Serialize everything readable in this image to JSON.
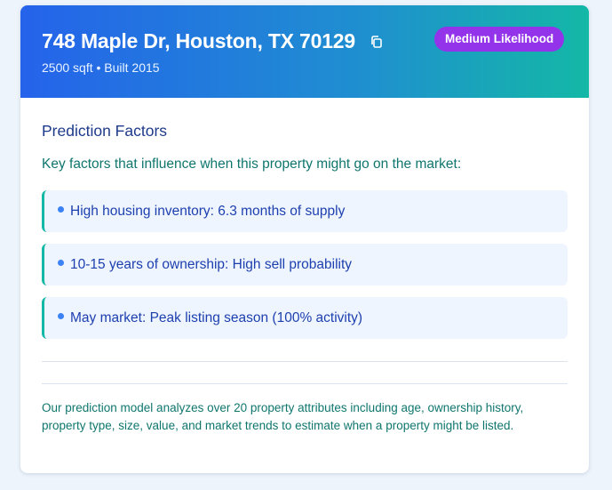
{
  "header": {
    "address": "748 Maple Dr, Houston, TX 70129",
    "meta": "2500 sqft • Built 2015",
    "badge": "Medium Likelihood",
    "copy_icon": "copy-icon"
  },
  "section": {
    "title": "Prediction Factors",
    "intro": "Key factors that influence when this property might go on the market:",
    "factors": [
      "High housing inventory: 6.3 months of supply",
      "10-15 years of ownership: High sell probability",
      "May market: Peak listing season (100% activity)"
    ]
  },
  "footnote": "Our prediction model analyzes over 20 property attributes including age, ownership history, property type, size, value, and market trends to estimate when a property might be listed.",
  "colors": {
    "header_gradient_start": "#2563eb",
    "header_gradient_end": "#14b8a6",
    "badge": "#9333ea",
    "factor_accent": "#14b8a6",
    "factor_dot": "#3b82f6"
  }
}
